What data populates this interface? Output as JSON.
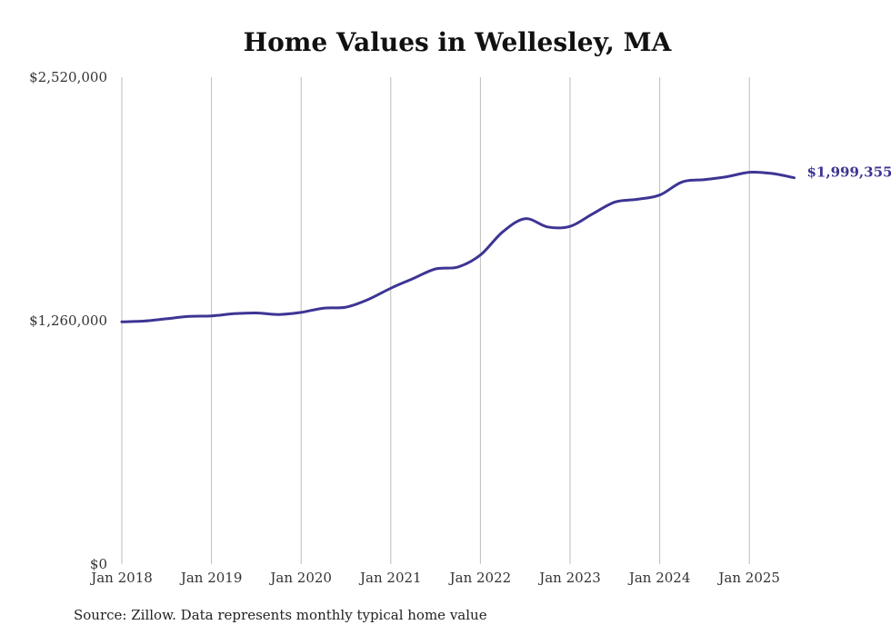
{
  "chart_data": {
    "type": "line",
    "title": "Home Values in Wellesley, MA",
    "xlabel": "",
    "ylabel": "",
    "ylim": [
      0,
      2520000
    ],
    "y_ticks": [
      {
        "value": 0,
        "label": "$0"
      },
      {
        "value": 1260000,
        "label": "$1,260,000"
      },
      {
        "value": 2520000,
        "label": "$2,520,000"
      }
    ],
    "x_ticks": [
      {
        "year": 2018,
        "label": "Jan 2018"
      },
      {
        "year": 2019,
        "label": "Jan 2019"
      },
      {
        "year": 2020,
        "label": "Jan 2020"
      },
      {
        "year": 2021,
        "label": "Jan 2021"
      },
      {
        "year": 2022,
        "label": "Jan 2022"
      },
      {
        "year": 2023,
        "label": "Jan 2023"
      },
      {
        "year": 2024,
        "label": "Jan 2024"
      },
      {
        "year": 2025,
        "label": "Jan 2025"
      }
    ],
    "grid": "vertical",
    "series": [
      {
        "name": "Typical home value",
        "color": "#3d3594",
        "points": [
          [
            2018.0,
            1254000
          ],
          [
            2018.25,
            1258000
          ],
          [
            2018.5,
            1270000
          ],
          [
            2018.75,
            1282000
          ],
          [
            2019.0,
            1285000
          ],
          [
            2019.25,
            1296000
          ],
          [
            2019.5,
            1300000
          ],
          [
            2019.75,
            1292000
          ],
          [
            2020.0,
            1303000
          ],
          [
            2020.25,
            1325000
          ],
          [
            2020.5,
            1330000
          ],
          [
            2020.75,
            1370000
          ],
          [
            2021.0,
            1428000
          ],
          [
            2021.25,
            1478000
          ],
          [
            2021.5,
            1528000
          ],
          [
            2021.75,
            1538000
          ],
          [
            2022.0,
            1600000
          ],
          [
            2022.25,
            1720000
          ],
          [
            2022.5,
            1788000
          ],
          [
            2022.75,
            1745000
          ],
          [
            2023.0,
            1748000
          ],
          [
            2023.25,
            1812000
          ],
          [
            2023.5,
            1874000
          ],
          [
            2023.75,
            1888000
          ],
          [
            2024.0,
            1910000
          ],
          [
            2024.25,
            1978000
          ],
          [
            2024.5,
            1990000
          ],
          [
            2024.75,
            2005000
          ],
          [
            2025.0,
            2028000
          ],
          [
            2025.25,
            2022000
          ],
          [
            2025.5,
            1999355
          ]
        ],
        "end_label": "$1,999,355"
      }
    ]
  },
  "source_note": "Source: Zillow. Data represents monthly typical home value"
}
